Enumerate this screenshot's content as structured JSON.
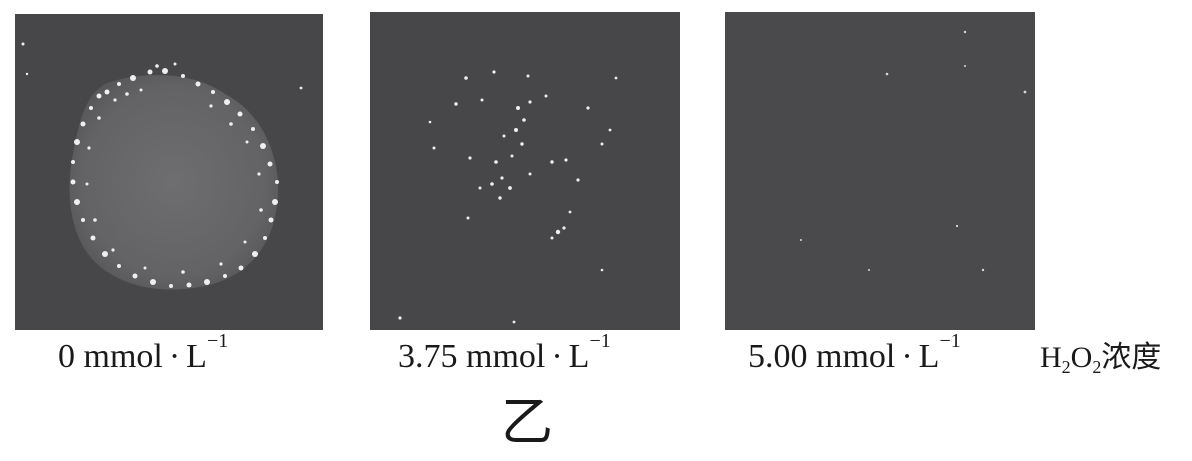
{
  "panels": [
    {
      "caption_value": "0 mmol",
      "caption_unit": "L",
      "caption_exp": "−1",
      "colony": "large"
    },
    {
      "caption_value": "3.75 mmol",
      "caption_unit": "L",
      "caption_exp": "−1",
      "colony": "scattered"
    },
    {
      "caption_value": "5.00 mmol",
      "caption_unit": "L",
      "caption_exp": "−1",
      "colony": "none"
    }
  ],
  "axis_label": {
    "h": "H",
    "sub1": "2",
    "o": "O",
    "sub2": "2",
    "text": "浓度"
  },
  "figure_label": "乙",
  "colors": {
    "panel_bg": "#47474a",
    "colony": "#6a6a6d",
    "speck": "#f2f2f2"
  }
}
